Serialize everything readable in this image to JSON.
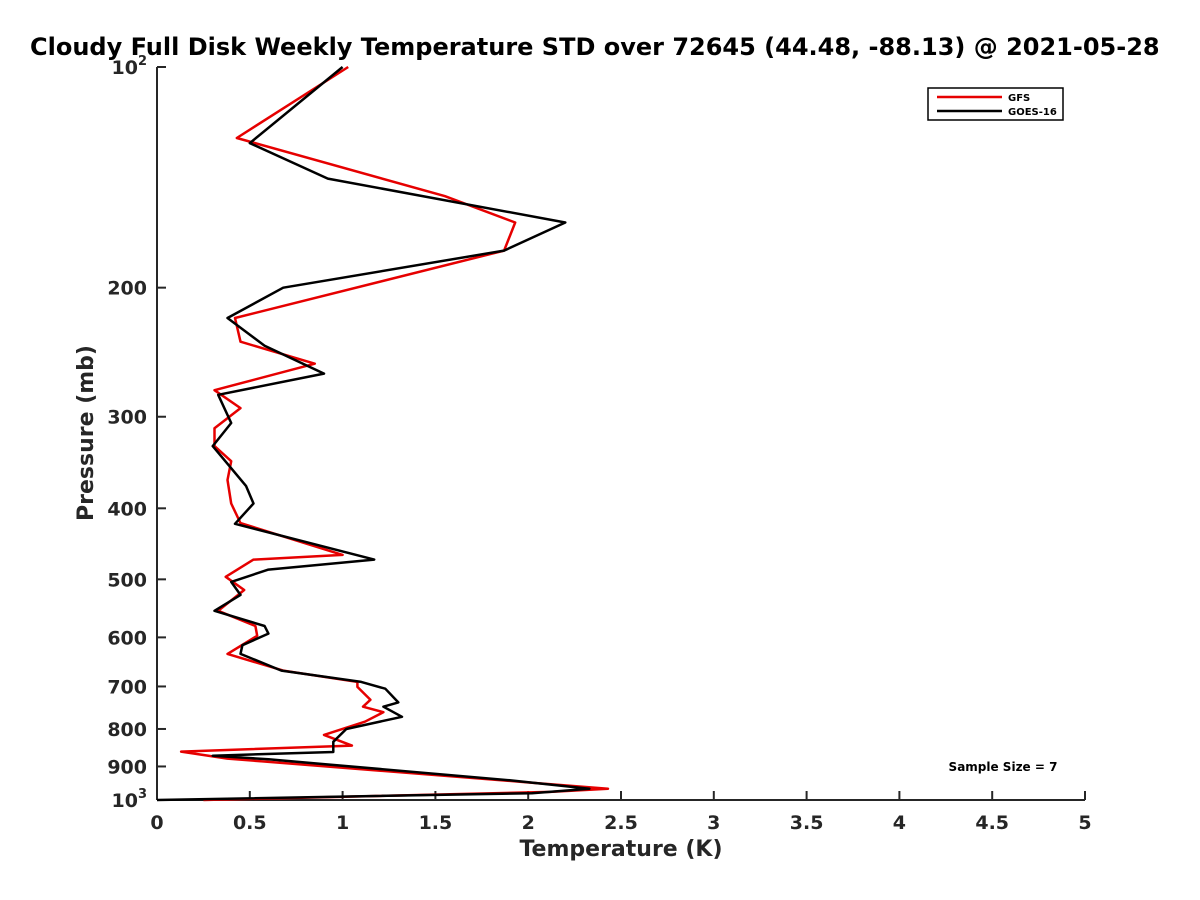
{
  "chart_data": {
    "type": "line",
    "title": "Cloudy Full Disk Weekly Temperature STD over 72645 (44.48, -88.13) @ 2021-05-28",
    "xlabel": "Temperature (K)",
    "ylabel": "Pressure (mb)",
    "xlim": [
      0,
      5
    ],
    "ylim": [
      1000,
      100
    ],
    "y_scale": "log",
    "y_reversed": true,
    "grid": false,
    "legend_position": "top-right",
    "x_ticks": [
      "0",
      "0.5",
      "1",
      "1.5",
      "2",
      "2.5",
      "3",
      "3.5",
      "4",
      "4.5",
      "5"
    ],
    "y_ticks": [
      {
        "value": 100,
        "label": "10",
        "sup": "2"
      },
      {
        "value": 200,
        "label": "200",
        "sup": ""
      },
      {
        "value": 300,
        "label": "300",
        "sup": ""
      },
      {
        "value": 400,
        "label": "400",
        "sup": ""
      },
      {
        "value": 500,
        "label": "500",
        "sup": ""
      },
      {
        "value": 600,
        "label": "600",
        "sup": ""
      },
      {
        "value": 700,
        "label": "700",
        "sup": ""
      },
      {
        "value": 800,
        "label": "800",
        "sup": ""
      },
      {
        "value": 900,
        "label": "900",
        "sup": ""
      },
      {
        "value": 1000,
        "label": "10",
        "sup": "3"
      }
    ],
    "annotation": "Sample Size = 7",
    "series": [
      {
        "name": "GFS",
        "color": "#e60000",
        "points": [
          [
            1.03,
            100
          ],
          [
            0.43,
            125
          ],
          [
            1.55,
            150
          ],
          [
            1.93,
            163
          ],
          [
            1.87,
            178
          ],
          [
            0.42,
            220
          ],
          [
            0.45,
            237
          ],
          [
            0.85,
            254
          ],
          [
            0.31,
            276
          ],
          [
            0.45,
            292
          ],
          [
            0.31,
            311
          ],
          [
            0.31,
            329
          ],
          [
            0.4,
            345
          ],
          [
            0.38,
            366
          ],
          [
            0.4,
            394
          ],
          [
            0.45,
            419
          ],
          [
            1.0,
            463
          ],
          [
            0.52,
            470
          ],
          [
            0.37,
            496
          ],
          [
            0.47,
            517
          ],
          [
            0.33,
            552
          ],
          [
            0.53,
            579
          ],
          [
            0.54,
            597
          ],
          [
            0.38,
            632
          ],
          [
            0.68,
            666
          ],
          [
            1.08,
            690
          ],
          [
            1.08,
            701
          ],
          [
            1.15,
            730
          ],
          [
            1.11,
            746
          ],
          [
            1.22,
            759
          ],
          [
            1.12,
            782
          ],
          [
            0.9,
            815
          ],
          [
            1.05,
            843
          ],
          [
            0.13,
            859
          ],
          [
            0.38,
            878
          ],
          [
            2.02,
            947
          ],
          [
            2.43,
            965
          ],
          [
            2.12,
            975
          ],
          [
            0.25,
            1000
          ]
        ]
      },
      {
        "name": "GOES-16",
        "color": "#000000",
        "points": [
          [
            1.0,
            100
          ],
          [
            0.5,
            127
          ],
          [
            0.92,
            142
          ],
          [
            2.2,
            163
          ],
          [
            1.87,
            178
          ],
          [
            0.68,
            200
          ],
          [
            0.38,
            220
          ],
          [
            0.58,
            240
          ],
          [
            0.9,
            262
          ],
          [
            0.33,
            280
          ],
          [
            0.4,
            306
          ],
          [
            0.3,
            329
          ],
          [
            0.48,
            373
          ],
          [
            0.52,
            394
          ],
          [
            0.42,
            420
          ],
          [
            1.17,
            470
          ],
          [
            0.6,
            485
          ],
          [
            0.4,
            504
          ],
          [
            0.45,
            525
          ],
          [
            0.31,
            552
          ],
          [
            0.58,
            579
          ],
          [
            0.6,
            593
          ],
          [
            0.46,
            615
          ],
          [
            0.45,
            632
          ],
          [
            0.67,
            666
          ],
          [
            1.1,
            690
          ],
          [
            1.23,
            705
          ],
          [
            1.3,
            736
          ],
          [
            1.22,
            746
          ],
          [
            1.32,
            770
          ],
          [
            1.02,
            800
          ],
          [
            0.95,
            833
          ],
          [
            0.95,
            860
          ],
          [
            0.3,
            870
          ],
          [
            0.6,
            880
          ],
          [
            1.9,
            940
          ],
          [
            2.33,
            965
          ],
          [
            2.02,
            979
          ],
          [
            0.0,
            1000
          ]
        ]
      }
    ]
  }
}
